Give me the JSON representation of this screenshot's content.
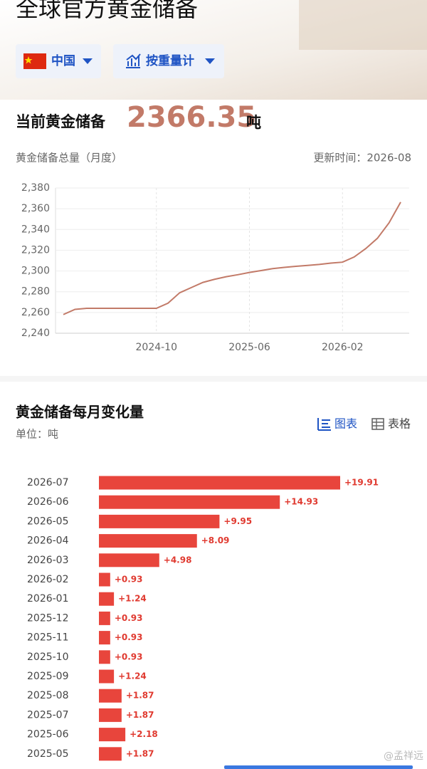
{
  "header": {
    "title": "全球官方黄金储备",
    "region": "中国",
    "mode": "按重量计"
  },
  "summary": {
    "label": "当前黄金储备",
    "value": 2366.35,
    "unit": "吨"
  },
  "chart_data": [
    {
      "type": "line",
      "title": "黄金储备总量（月度）",
      "updated": "更新时间：2026-08",
      "x": [
        "2024-02",
        "2024-03",
        "2024-04",
        "2024-05",
        "2024-06",
        "2024-07",
        "2024-08",
        "2024-09",
        "2024-10",
        "2024-11",
        "2024-12",
        "2025-01",
        "2025-02",
        "2025-03",
        "2025-04",
        "2025-05",
        "2025-06",
        "2025-07",
        "2025-08",
        "2025-09",
        "2025-10",
        "2025-11",
        "2025-12",
        "2026-01",
        "2026-02",
        "2026-03",
        "2026-04",
        "2026-05",
        "2026-06",
        "2026-07"
      ],
      "values": [
        2258,
        2263,
        2264,
        2264,
        2264,
        2264,
        2264,
        2264,
        2264,
        2269,
        2279,
        2284,
        2289,
        2292,
        2294.5,
        2296.4,
        2298.6,
        2300.4,
        2302.3,
        2303.5,
        2304.5,
        2305.4,
        2306.3,
        2307.6,
        2308.5,
        2313.5,
        2321.6,
        2331.5,
        2346.4,
        2366.35
      ],
      "color": "#c27a68",
      "ylim": [
        2240,
        2380
      ],
      "yticks": [
        {
          "value": 2240,
          "label": "2,240"
        },
        {
          "value": 2260,
          "label": "2,260"
        },
        {
          "value": 2280,
          "label": "2,280"
        },
        {
          "value": 2300,
          "label": "2,300"
        },
        {
          "value": 2320,
          "label": "2,320"
        },
        {
          "value": 2340,
          "label": "2,340"
        },
        {
          "value": 2360,
          "label": "2,360"
        },
        {
          "value": 2380,
          "label": "2,380"
        }
      ],
      "xticks": [
        "2024-10",
        "2025-06",
        "2026-02"
      ],
      "grid": true
    },
    {
      "type": "bar",
      "orientation": "horizontal",
      "title": "黄金储备每月变化量",
      "subtitle": "单位：吨",
      "categories": [
        "2026-07",
        "2026-06",
        "2026-05",
        "2026-04",
        "2026-03",
        "2026-02",
        "2026-01",
        "2025-12",
        "2025-11",
        "2025-10",
        "2025-09",
        "2025-08",
        "2025-07",
        "2025-06",
        "2025-05"
      ],
      "values": [
        19.91,
        14.93,
        9.95,
        8.09,
        4.98,
        0.93,
        1.24,
        0.93,
        0.93,
        0.93,
        1.24,
        1.87,
        1.87,
        2.18,
        1.87
      ],
      "value_labels": [
        "+19.91",
        "+14.93",
        "+9.95",
        "+8.09",
        "+4.98",
        "+0.93",
        "+1.24",
        "+0.93",
        "+0.93",
        "+0.93",
        "+1.24",
        "+1.87",
        "+1.87",
        "+2.18",
        "+1.87"
      ],
      "color": "#e8453c"
    }
  ],
  "view_tabs": [
    "图表",
    "表格"
  ],
  "watermark": "@孟祥远"
}
